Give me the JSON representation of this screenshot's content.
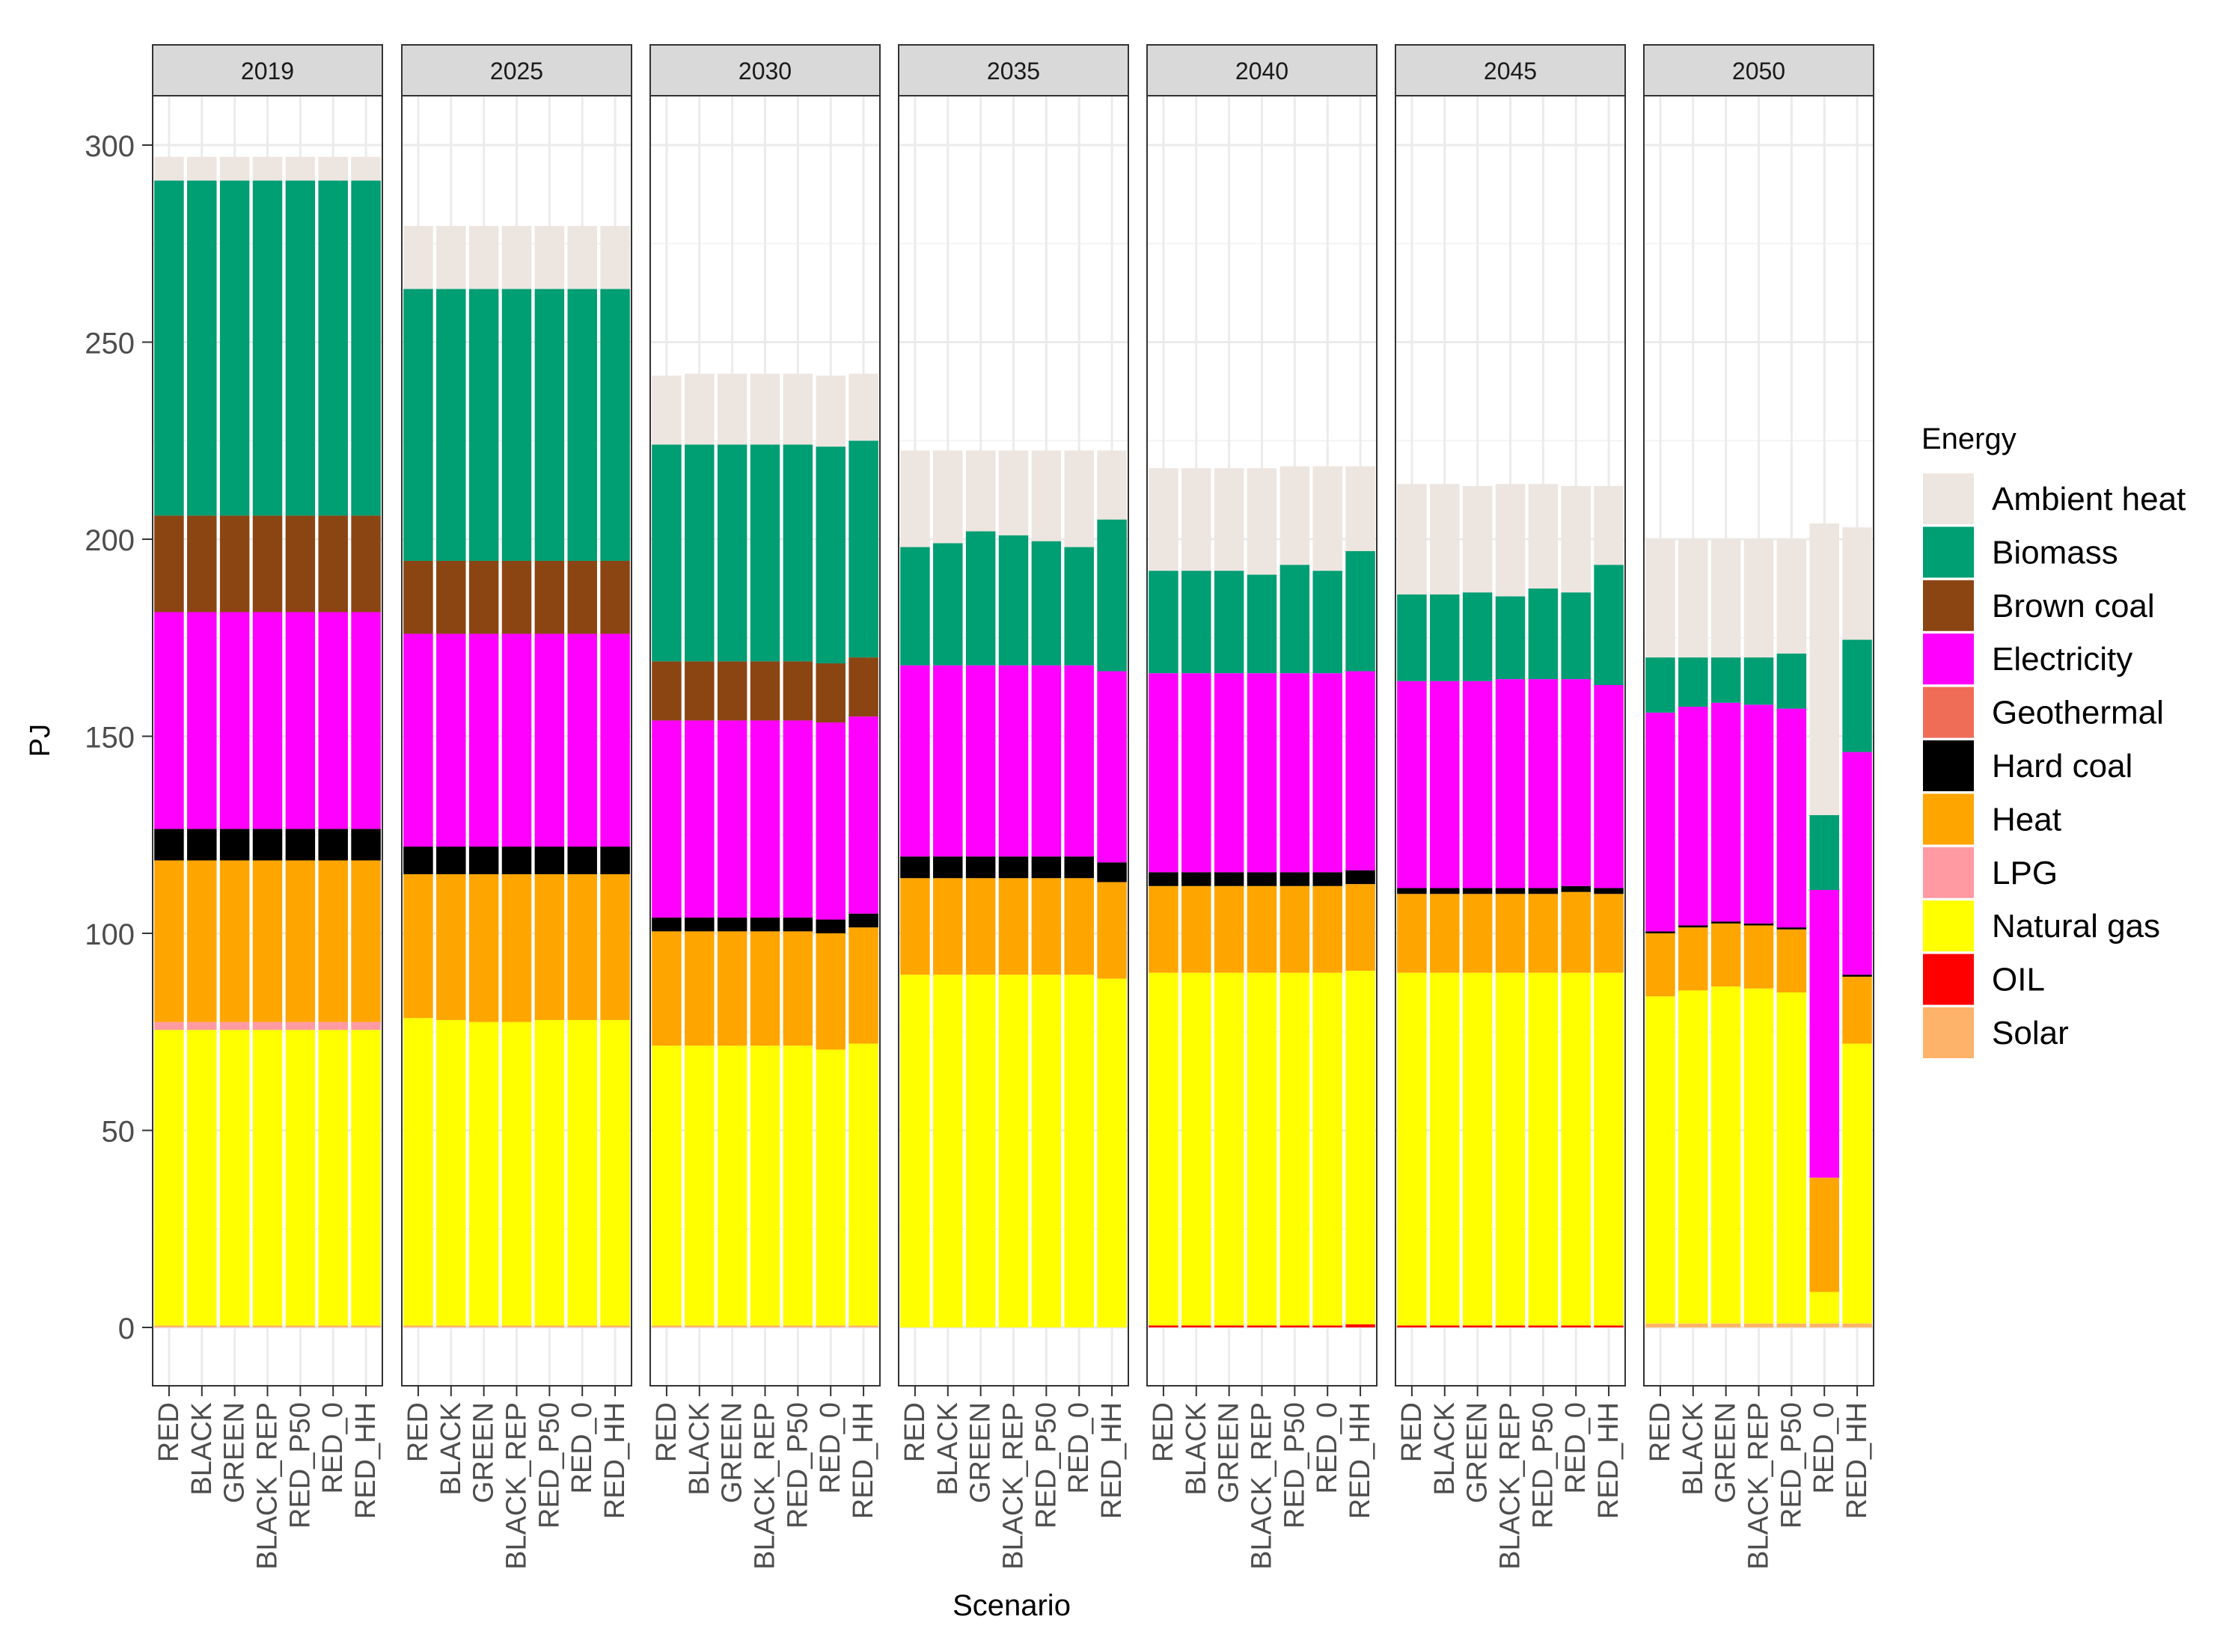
{
  "chart_data": {
    "type": "bar",
    "stacked": true,
    "facet_by": "year",
    "facets": [
      "2019",
      "2025",
      "2030",
      "2035",
      "2040",
      "2045",
      "2050"
    ],
    "categories": [
      "RED",
      "BLACK",
      "GREEN",
      "BLACK_REP",
      "RED_P50",
      "RED_0",
      "RED_HH"
    ],
    "xlabel": "Scenario",
    "ylabel": "PJ",
    "ylim": [
      -15,
      312
    ],
    "yticks": [
      0,
      50,
      100,
      150,
      200,
      250,
      300
    ],
    "grid": true,
    "legend": {
      "title": "Energy",
      "position": "right",
      "entries": [
        "Ambient heat",
        "Biomass",
        "Brown coal",
        "Electricity",
        "Geothermal",
        "Hard coal",
        "Heat",
        "LPG",
        "Natural gas",
        "OIL",
        "Solar"
      ]
    },
    "colors": {
      "Ambient heat": "#EDE5DF",
      "Biomass": "#009E73",
      "Brown coal": "#8B4513",
      "Electricity": "#FF00FF",
      "Geothermal": "#EF6C57",
      "Hard coal": "#000000",
      "Heat": "#FFA500",
      "LPG": "#FF9AA2",
      "Natural gas": "#FFFF00",
      "OIL": "#FF0000",
      "Solar": "#FDB36A"
    },
    "stack_order": [
      "Solar",
      "OIL",
      "Natural gas",
      "LPG",
      "Heat",
      "Hard coal",
      "Geothermal",
      "Electricity",
      "Brown coal",
      "Biomass",
      "Ambient heat"
    ],
    "data": {
      "2019": {
        "Solar": [
          0.5,
          0.5,
          0.5,
          0.5,
          0.5,
          0.5,
          0.5
        ],
        "Natural gas": [
          75,
          75,
          75,
          75,
          75,
          75,
          75
        ],
        "LPG": [
          2,
          2,
          2,
          2,
          2,
          2,
          2
        ],
        "Heat": [
          41,
          41,
          41,
          41,
          41,
          41,
          41
        ],
        "Hard coal": [
          8,
          8,
          8,
          8,
          8,
          8,
          8
        ],
        "Electricity": [
          55,
          55,
          55,
          55,
          55,
          55,
          55
        ],
        "Brown coal": [
          24.5,
          24.5,
          24.5,
          24.5,
          24.5,
          24.5,
          24.5
        ],
        "Biomass": [
          85,
          85,
          85,
          85,
          85,
          85,
          85
        ],
        "Ambient heat": [
          6,
          6,
          6,
          6,
          6,
          6,
          6
        ]
      },
      "2025": {
        "Solar": [
          0.5,
          0.5,
          0.5,
          0.5,
          0.5,
          0.5,
          0.5
        ],
        "Natural gas": [
          78,
          77.5,
          77,
          77,
          77.5,
          77.5,
          77.5
        ],
        "Heat": [
          36.5,
          37,
          37.5,
          37.5,
          37,
          37,
          37
        ],
        "Hard coal": [
          7,
          7,
          7,
          7,
          7,
          7,
          7
        ],
        "Electricity": [
          54,
          54,
          54,
          54,
          54,
          54,
          54
        ],
        "Brown coal": [
          18.5,
          18.5,
          18.5,
          18.5,
          18.5,
          18.5,
          18.5
        ],
        "Biomass": [
          69,
          69,
          69,
          69,
          69,
          69,
          69
        ],
        "Ambient heat": [
          16,
          16,
          16,
          16,
          16,
          16,
          16
        ]
      },
      "2030": {
        "Solar": [
          0.5,
          0.5,
          0.5,
          0.5,
          0.5,
          0.5,
          0.5
        ],
        "Natural gas": [
          71,
          71,
          71,
          71,
          71,
          70,
          71.5
        ],
        "Heat": [
          29,
          29,
          29,
          29,
          29,
          29.5,
          29.5
        ],
        "Hard coal": [
          3.5,
          3.5,
          3.5,
          3.5,
          3.5,
          3.5,
          3.5
        ],
        "Electricity": [
          50,
          50,
          50,
          50,
          50,
          50,
          50
        ],
        "Brown coal": [
          15,
          15,
          15,
          15,
          15,
          15,
          15
        ],
        "Biomass": [
          55,
          55,
          55,
          55,
          55,
          55,
          55
        ],
        "Ambient heat": [
          17.5,
          18,
          18,
          18,
          18,
          18,
          17
        ]
      },
      "2035": {
        "Natural gas": [
          89.5,
          89.5,
          89.5,
          89.5,
          89.5,
          89.5,
          88.5
        ],
        "Heat": [
          24.5,
          24.5,
          24.5,
          24.5,
          24.5,
          24.5,
          24.5
        ],
        "Hard coal": [
          5.5,
          5.5,
          5.5,
          5.5,
          5.5,
          5.5,
          5
        ],
        "Electricity": [
          48.5,
          48.5,
          48.5,
          48.5,
          48.5,
          48.5,
          48.5
        ],
        "Biomass": [
          30,
          31,
          34,
          33,
          31.5,
          30,
          38.5
        ],
        "Ambient heat": [
          24.5,
          23.5,
          20.5,
          21.5,
          23,
          24.5,
          17.5
        ]
      },
      "2040": {
        "OIL": [
          0.5,
          0.5,
          0.5,
          0.5,
          0.5,
          0.5,
          0.8
        ],
        "Natural gas": [
          89.5,
          89.5,
          89.5,
          89.5,
          89.5,
          89.5,
          89.7
        ],
        "Heat": [
          22,
          22,
          22,
          22,
          22,
          22,
          22
        ],
        "Hard coal": [
          3.5,
          3.5,
          3.5,
          3.5,
          3.5,
          3.5,
          3.5
        ],
        "Electricity": [
          50.5,
          50.5,
          50.5,
          50.5,
          50.5,
          50.5,
          50.5
        ],
        "Biomass": [
          26,
          26,
          26,
          25,
          27.5,
          26,
          30.5
        ],
        "Ambient heat": [
          26,
          26,
          26,
          27,
          25,
          26.5,
          21.5
        ]
      },
      "2045": {
        "OIL": [
          0.5,
          0.5,
          0.5,
          0.5,
          0.5,
          0.5,
          0.5
        ],
        "Natural gas": [
          89.5,
          89.5,
          89.5,
          89.5,
          89.5,
          89.5,
          89.5
        ],
        "Heat": [
          20,
          20,
          20,
          20,
          20,
          20.5,
          20
        ],
        "Hard coal": [
          1.5,
          1.5,
          1.5,
          1.5,
          1.5,
          1.5,
          1.5
        ],
        "Electricity": [
          52.5,
          52.5,
          52.5,
          53,
          53,
          52.5,
          51.5
        ],
        "Biomass": [
          22,
          22,
          22.5,
          21,
          23,
          22,
          30.5
        ],
        "Ambient heat": [
          28,
          28,
          27,
          28.5,
          26.5,
          27,
          20
        ]
      },
      "2050": {
        "Solar": [
          1,
          1,
          1,
          1,
          1,
          1,
          1
        ],
        "Natural gas": [
          83,
          84.5,
          85.5,
          85,
          84,
          8,
          71
        ],
        "Heat": [
          16,
          16,
          16,
          16,
          16,
          29,
          17
        ],
        "Hard coal": [
          0.5,
          0.5,
          0.5,
          0.5,
          0.5,
          0,
          0.5
        ],
        "Electricity": [
          55.5,
          55.5,
          55.5,
          55.5,
          55.5,
          73,
          56.5
        ],
        "Biomass": [
          14,
          12.5,
          11.5,
          12,
          14,
          19,
          28.5
        ],
        "Ambient heat": [
          30,
          30,
          30,
          30,
          29,
          74,
          28.5
        ]
      }
    }
  }
}
